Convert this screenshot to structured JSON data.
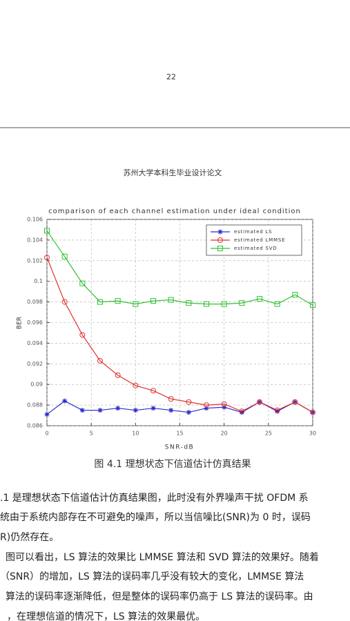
{
  "page_number": "22",
  "header": "苏州大学本科生毕业设计论文",
  "chart_data": {
    "type": "line",
    "title": "comparison of each channel estimation under ideal condition",
    "xlabel": "SNR-dB",
    "ylabel": "BER",
    "x": [
      0,
      2,
      4,
      6,
      8,
      10,
      12,
      14,
      16,
      18,
      20,
      22,
      24,
      26,
      28,
      30
    ],
    "series": [
      {
        "name": "estimated LS",
        "color": "#2a2ac8",
        "marker": "star",
        "values": [
          0.0871,
          0.0884,
          0.0875,
          0.0875,
          0.0877,
          0.0875,
          0.0877,
          0.0875,
          0.0873,
          0.0877,
          0.0878,
          0.0873,
          0.0883,
          0.0874,
          0.0883,
          0.0873
        ]
      },
      {
        "name": "estimated LMMSE",
        "color": "#e03030",
        "marker": "circle",
        "values": [
          0.1023,
          0.098,
          0.0948,
          0.0923,
          0.0909,
          0.0899,
          0.0894,
          0.0886,
          0.0883,
          0.088,
          0.0881,
          0.0874,
          0.0883,
          0.0875,
          0.0883,
          0.0873
        ]
      },
      {
        "name": "estimated SVD",
        "color": "#30c030",
        "marker": "square",
        "values": [
          0.1049,
          0.1024,
          0.0998,
          0.098,
          0.0981,
          0.0978,
          0.0981,
          0.0982,
          0.0979,
          0.0978,
          0.0978,
          0.0979,
          0.0983,
          0.0978,
          0.0987,
          0.0977
        ]
      }
    ],
    "xlim": [
      0,
      30
    ],
    "xticks": [
      0,
      5,
      10,
      15,
      20,
      25,
      30
    ],
    "ylim": [
      0.086,
      0.106
    ],
    "yticks": [
      0.086,
      0.088,
      0.09,
      0.092,
      0.094,
      0.096,
      0.098,
      0.1,
      0.102,
      0.104,
      0.106
    ],
    "grid": true,
    "legend": "upper right"
  },
  "caption": "图 4.1  理想状态下信道估计仿真结果",
  "body": {
    "lines": [
      ".1 是理想状态下信道估计仿真结果图，此时没有外界噪声干扰 OFDM 系",
      "统由于系统内部存在不可避免的噪声，所以当信噪比(SNR)为 0 时，误码",
      "R)仍然存在。",
      "图可以看出，LS 算法的效果比 LMMSE 算法和 SVD 算法的效果好。随着",
      "（SNR）的增加，LS 算法的误码率几乎没有较大的变化，LMMSE 算法",
      "算法的误码率逐渐降低，但是整体的误码率仍高于 LS 算法的误码率。由",
      "，在理想信道的情况下，LS 算法的效果最优。"
    ]
  }
}
